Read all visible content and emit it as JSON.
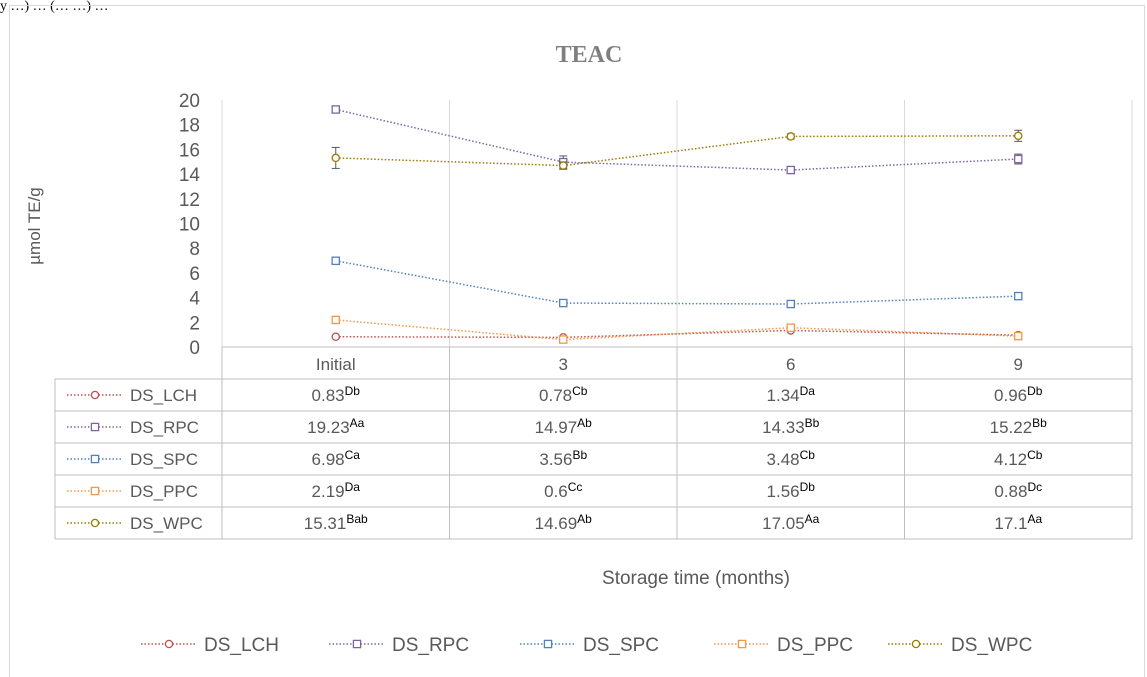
{
  "page_header_text": "y …) … (… …) …",
  "chart_data": {
    "type": "line",
    "title": "TEAC",
    "xlabel": "Storage time (months)",
    "ylabel": "µmol TE/g",
    "categories": [
      "Initial",
      "3",
      "6",
      "9"
    ],
    "yticks": [
      "0",
      "2",
      "4",
      "6",
      "8",
      "10",
      "12",
      "14",
      "16",
      "18",
      "20"
    ],
    "ylim": [
      0,
      20
    ],
    "grid": "vertical",
    "legend_position": "bottom",
    "data_table": true,
    "series": [
      {
        "name": "DS_LCH",
        "color": "#c0504d",
        "marker": "circle",
        "values": [
          0.83,
          0.78,
          1.34,
          0.96
        ],
        "errors": [
          0.05,
          0.05,
          0.1,
          0.05
        ],
        "labels": [
          "0.83",
          "0.78",
          "1.34",
          "0.96"
        ],
        "sup": [
          "Db",
          "Cb",
          "Da",
          "Db"
        ]
      },
      {
        "name": "DS_RPC",
        "color": "#8064a2",
        "marker": "square",
        "values": [
          19.23,
          14.97,
          14.33,
          15.22
        ],
        "errors": [
          0.15,
          0.5,
          0.2,
          0.4
        ],
        "labels": [
          "19.23",
          "14.97",
          "14.33",
          "15.22"
        ],
        "sup": [
          "Aa",
          "Ab",
          "Bb",
          "Bb"
        ]
      },
      {
        "name": "DS_SPC",
        "color": "#4f81bd",
        "marker": "square",
        "values": [
          6.98,
          3.56,
          3.48,
          4.12
        ],
        "errors": [
          0.15,
          0.25,
          0.15,
          0.2
        ],
        "labels": [
          "6.98",
          "3.56",
          "3.48",
          "4.12"
        ],
        "sup": [
          "Ca",
          "Bb",
          "Cb",
          "Cb"
        ]
      },
      {
        "name": "DS_PPC",
        "color": "#f79646",
        "marker": "square",
        "values": [
          2.19,
          0.6,
          1.56,
          0.88
        ],
        "errors": [
          0.1,
          0.05,
          0.1,
          0.05
        ],
        "labels": [
          "2.19",
          "0.6",
          "1.56",
          "0.88"
        ],
        "sup": [
          "Da",
          "Cc",
          "Db",
          "Dc"
        ]
      },
      {
        "name": "DS_WPC",
        "color": "#9c7a00",
        "marker": "circle",
        "values": [
          15.31,
          14.69,
          17.05,
          17.1
        ],
        "errors": [
          0.85,
          0.3,
          0.2,
          0.45
        ],
        "labels": [
          "15.31",
          "14.69",
          "17.05",
          "17.1"
        ],
        "sup": [
          "Bab",
          "Ab",
          "Aa",
          "Aa"
        ]
      }
    ]
  }
}
